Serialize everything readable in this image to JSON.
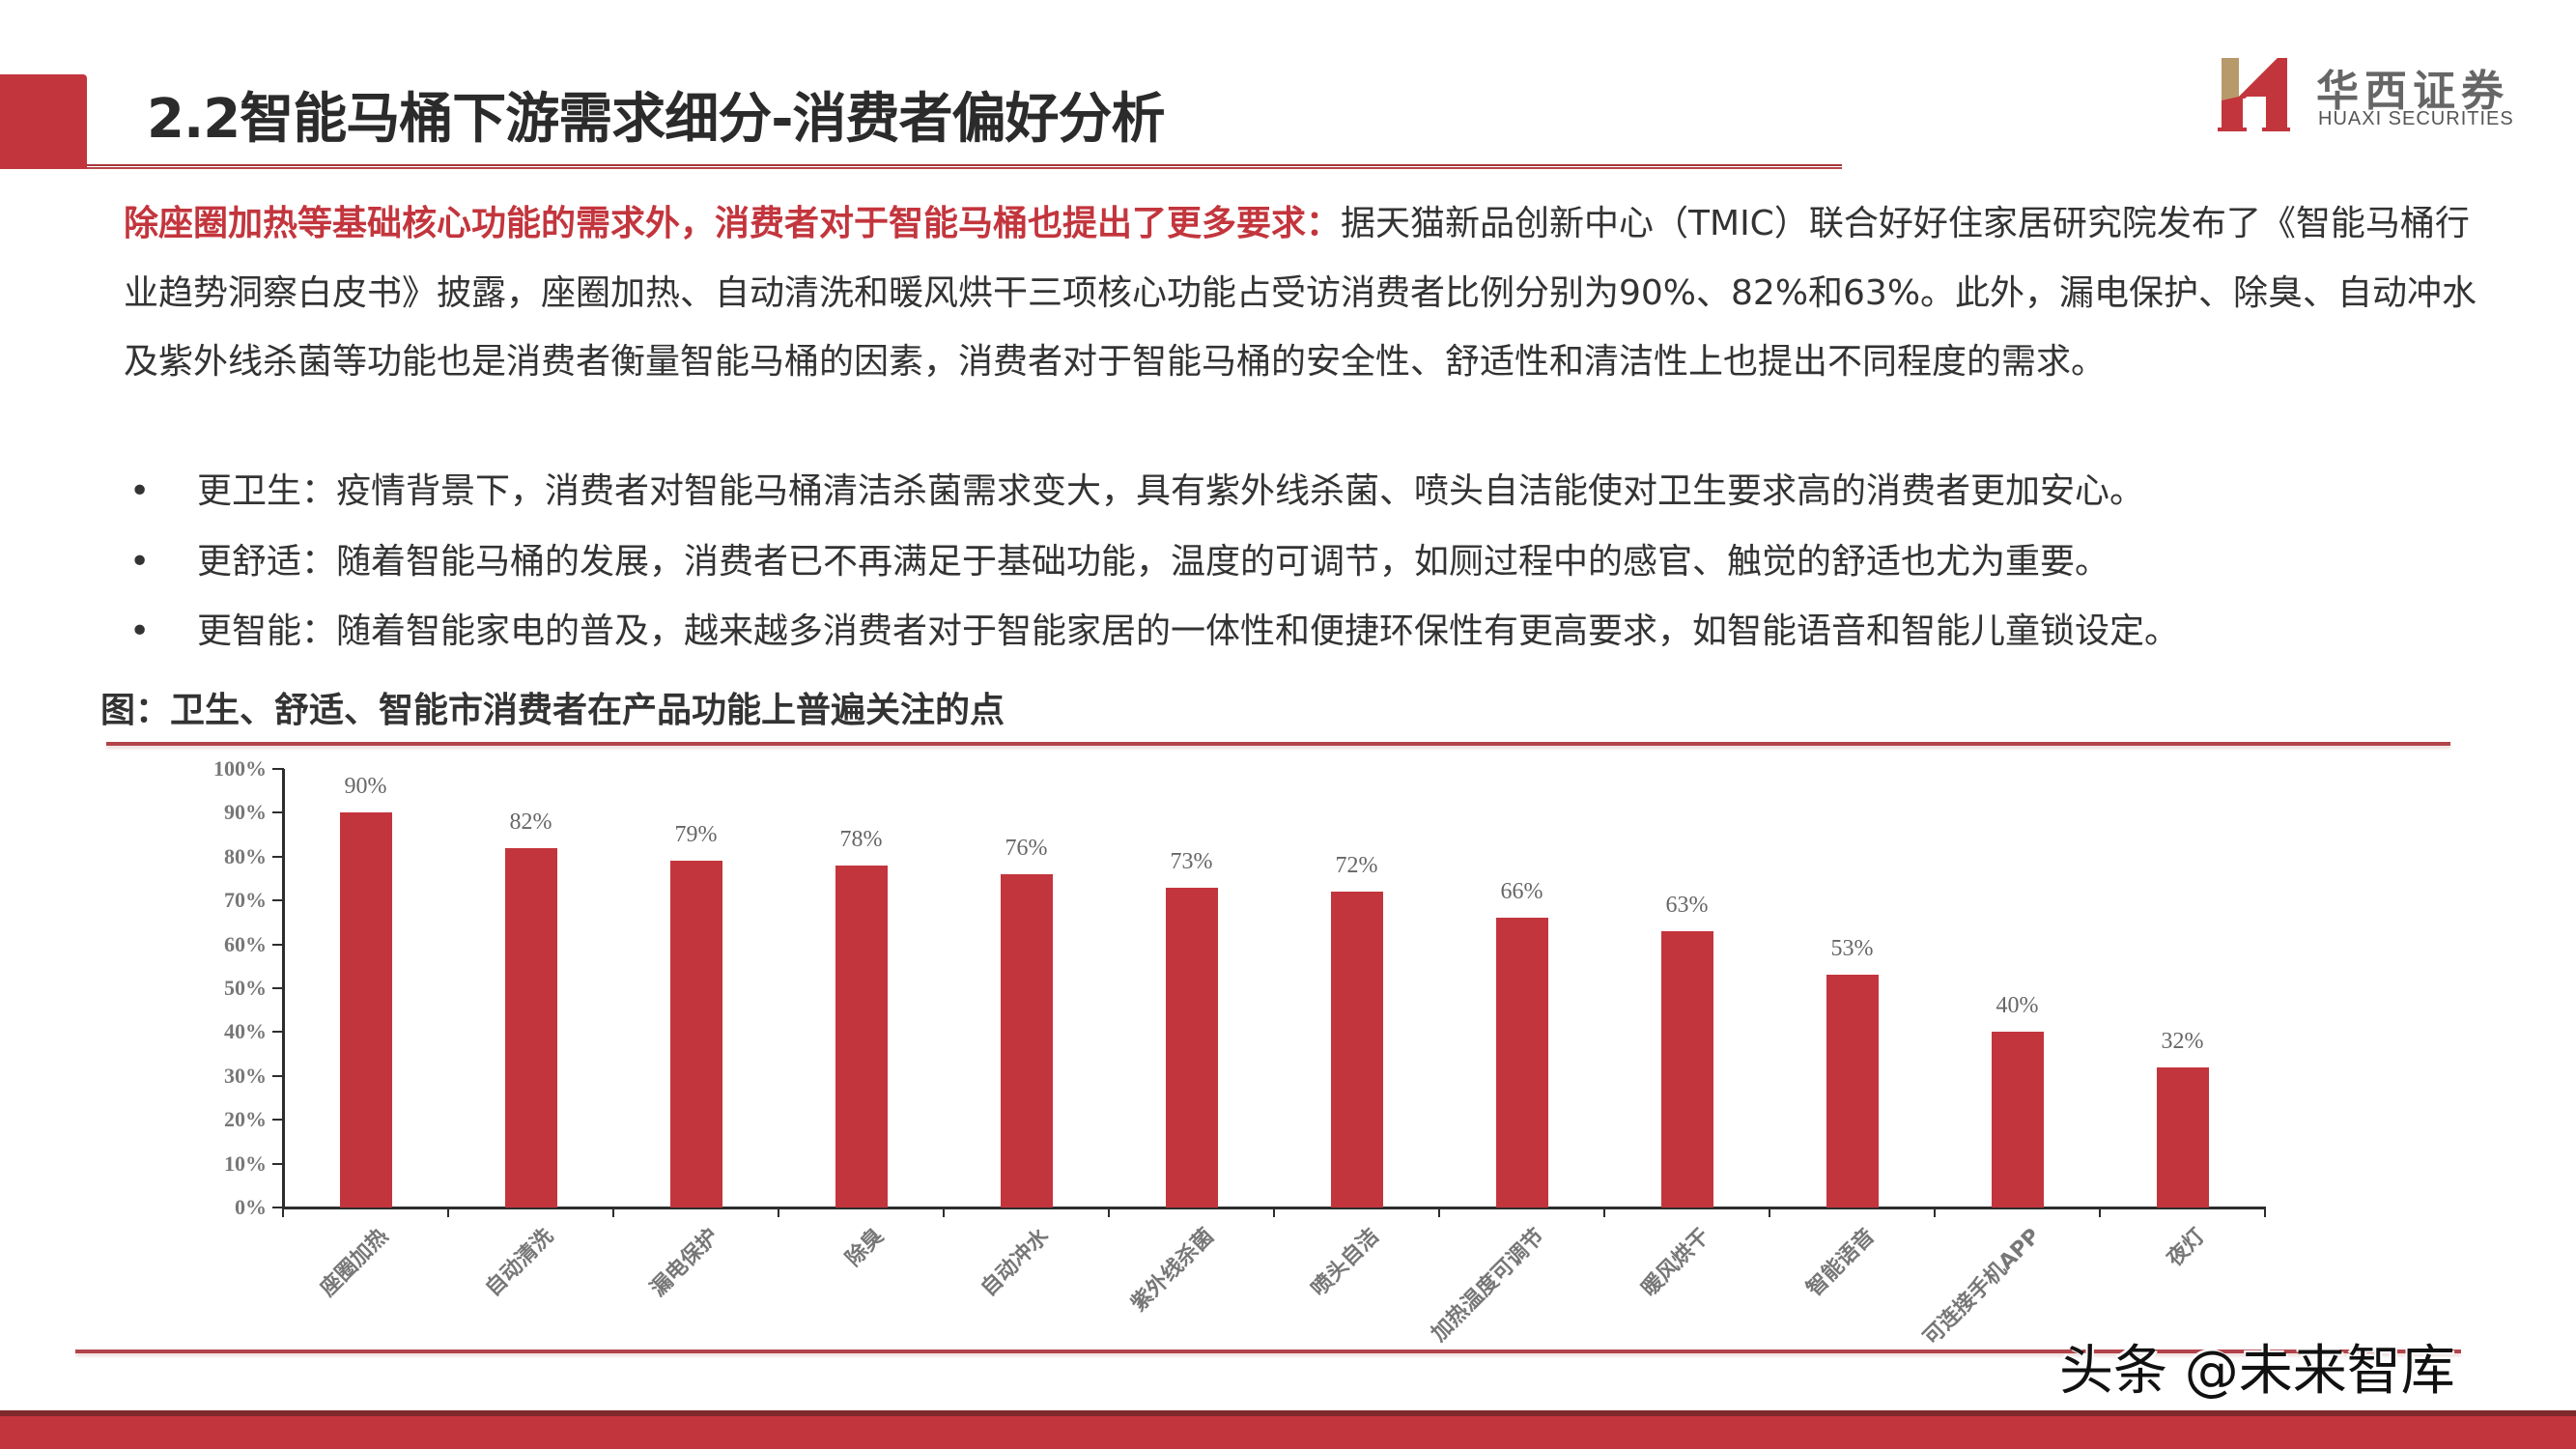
{
  "header": {
    "title": "2.2智能马桶下游需求细分-消费者偏好分析"
  },
  "logo": {
    "name_cn": "华西证券",
    "name_en": "HUAXI SECURITIES",
    "colors": {
      "gold": "#b89a6a",
      "red": "#c3353d"
    }
  },
  "intro": {
    "lead": "除座圈加热等基础核心功能的需求外，消费者对于智能马桶也提出了更多要求：",
    "body": "据天猫新品创新中心（TMIC）联合好好住家居研究院发布了《智能马桶行业趋势洞察白皮书》披露，座圈加热、自动清洗和暖风烘干三项核心功能占受访消费者比例分别为90%、82%和63%。此外，漏电保护、除臭、自动冲水及紫外线杀菌等功能也是消费者衡量智能马桶的因素，消费者对于智能马桶的安全性、舒适性和清洁性上也提出不同程度的需求。"
  },
  "bullets": [
    {
      "marker": "•",
      "text": "更卫生：疫情背景下，消费者对智能马桶清洁杀菌需求变大，具有紫外线杀菌、喷头自洁能使对卫生要求高的消费者更加安心。"
    },
    {
      "marker": "•",
      "text": "更舒适：随着智能马桶的发展，消费者已不再满足于基础功能，温度的可调节，如厕过程中的感官、触觉的舒适也尤为重要。"
    },
    {
      "marker": "•",
      "text": "更智能：随着智能家电的普及，越来越多消费者对于智能家居的一体性和便捷环保性有更高要求，如智能语音和智能儿童锁设定。"
    }
  ],
  "figure": {
    "title": "图：卫生、舒适、智能市消费者在产品功能上普遍关注的点"
  },
  "chart_data": {
    "type": "bar",
    "title": "图：卫生、舒适、智能市消费者在产品功能上普遍关注的点",
    "xlabel": "",
    "ylabel": "",
    "categories": [
      "座圈加热",
      "自动清洗",
      "漏电保护",
      "除臭",
      "自动冲水",
      "紫外线杀菌",
      "喷头自洁",
      "加热温度可调节",
      "暖风烘干",
      "智能语音",
      "可连接手机APP",
      "夜灯"
    ],
    "values": [
      90,
      82,
      79,
      78,
      76,
      73,
      72,
      66,
      63,
      53,
      40,
      32
    ],
    "value_labels": [
      "90%",
      "82%",
      "79%",
      "78%",
      "76%",
      "73%",
      "72%",
      "66%",
      "63%",
      "53%",
      "40%",
      "32%"
    ],
    "y_ticks": [
      "0%",
      "10%",
      "20%",
      "30%",
      "40%",
      "50%",
      "60%",
      "70%",
      "80%",
      "90%",
      "100%"
    ],
    "ylim": [
      0,
      100
    ],
    "unit": "%",
    "grid": false,
    "legend": null,
    "bar_color": "#c3353d"
  },
  "watermark": {
    "text": "头条 @未来智库"
  }
}
